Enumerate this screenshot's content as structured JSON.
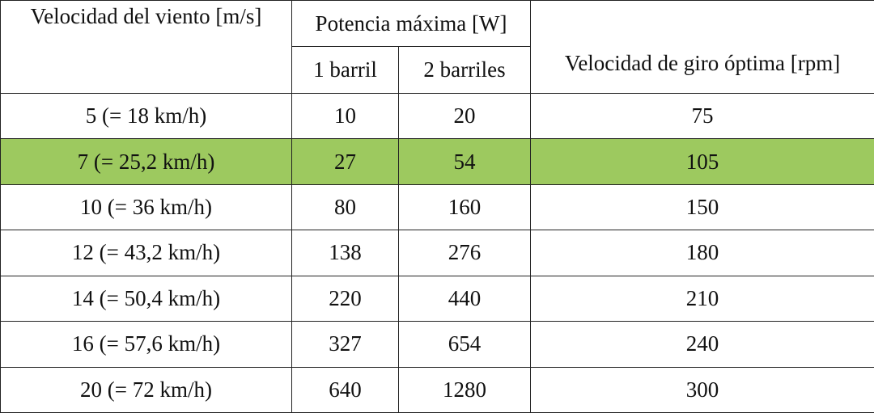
{
  "table": {
    "header": {
      "wind_speed": "Velocidad del viento [m/s]",
      "max_power": "Potencia máxima [W]",
      "one_barrel": "1 barril",
      "two_barrels": "2 barriles",
      "optimal_rpm": "Velocidad de giro óptima [rpm]"
    },
    "highlighted_row": 1,
    "rows": [
      [
        "5 (= 18 km/h)",
        10,
        20,
        75
      ],
      [
        "7 (= 25,2 km/h)",
        27,
        54,
        105
      ],
      [
        "10 (= 36 km/h)",
        80,
        160,
        150
      ],
      [
        "12 (= 43,2 km/h)",
        138,
        276,
        180
      ],
      [
        "14 (= 50,4 km/h)",
        220,
        440,
        210
      ],
      [
        "16 (= 57,6 km/h)",
        327,
        654,
        240
      ],
      [
        "20 (= 72 km/h)",
        640,
        1280,
        300
      ]
    ]
  }
}
